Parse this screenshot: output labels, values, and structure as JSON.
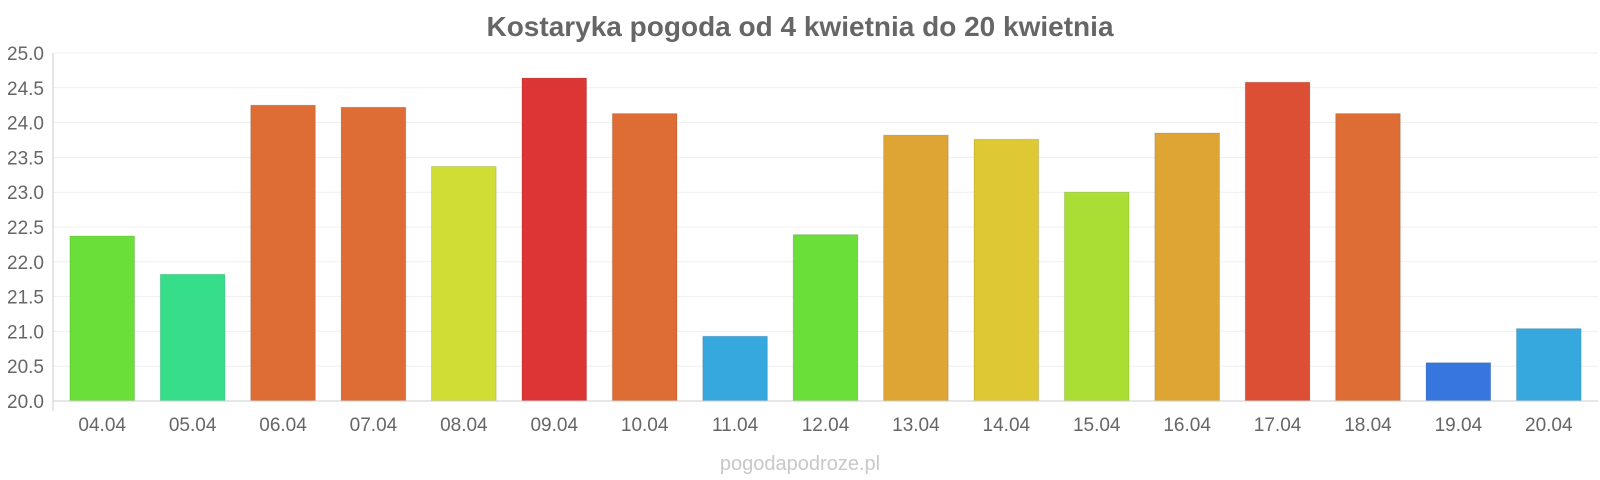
{
  "chart_data": {
    "type": "bar",
    "title": "Kostaryka pogoda od 4 kwietnia do 20 kwietnia",
    "xlabel": "",
    "ylabel": "",
    "ylim": [
      20.0,
      25.0
    ],
    "yticks": [
      "20.0",
      "20.5",
      "21.0",
      "21.5",
      "22.0",
      "22.5",
      "23.0",
      "23.5",
      "24.0",
      "24.5",
      "25.0"
    ],
    "grid": true,
    "legend": "none",
    "categories": [
      "04.04",
      "05.04",
      "06.04",
      "07.04",
      "08.04",
      "09.04",
      "10.04",
      "11.04",
      "12.04",
      "13.04",
      "14.04",
      "15.04",
      "16.04",
      "17.04",
      "18.04",
      "19.04",
      "20.04"
    ],
    "values": [
      22.37,
      21.82,
      24.25,
      24.22,
      23.37,
      24.64,
      24.13,
      20.93,
      22.39,
      23.82,
      23.76,
      23.0,
      23.85,
      24.58,
      24.13,
      20.55,
      21.04
    ],
    "colors": [
      "#6ade39",
      "#37de8a",
      "#de6d35",
      "#de6d35",
      "#cfdd34",
      "#dd3535",
      "#de6d35",
      "#37a8de",
      "#6ade39",
      "#dea535",
      "#dec935",
      "#aade34",
      "#dea535",
      "#dd4f35",
      "#de6d35",
      "#3676de",
      "#37a8de"
    ]
  },
  "watermark": "pogodapodroze.pl"
}
